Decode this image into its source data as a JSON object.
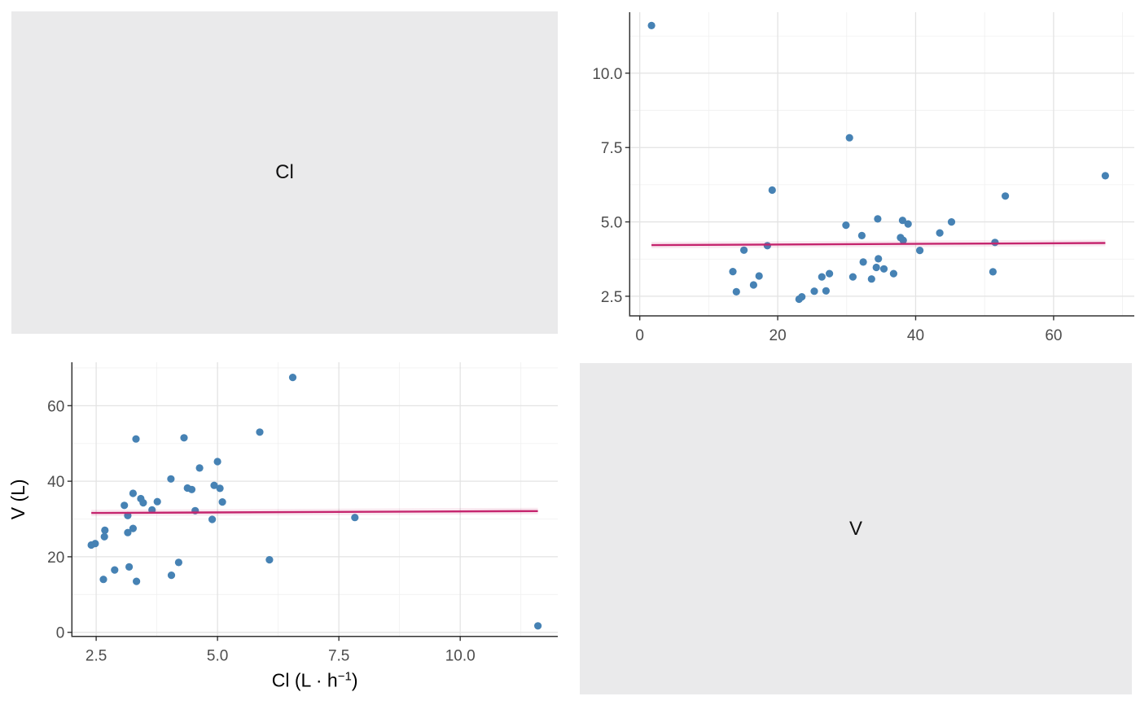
{
  "panels": {
    "top_left_label": "Cl",
    "bottom_right_label": "V"
  },
  "colors": {
    "point": "#4682B4",
    "trend": "#C5256E",
    "panel_bg": "#EAEAEB",
    "grid_major": "#E3E3E3",
    "grid_minor": "#F0F0F0",
    "axis_line": "#333333",
    "tick_label": "#4D4D4D",
    "background": "#FFFFFF"
  },
  "chart_data": {
    "type": "scatter",
    "matrix_variables": [
      "Cl",
      "V"
    ],
    "points_cl_v": [
      [
        11.6,
        1.7
      ],
      [
        2.65,
        14.0
      ],
      [
        3.33,
        13.5
      ],
      [
        4.05,
        15.1
      ],
      [
        2.88,
        16.5
      ],
      [
        3.18,
        17.3
      ],
      [
        4.2,
        18.5
      ],
      [
        6.07,
        19.2
      ],
      [
        2.4,
        23.1
      ],
      [
        2.48,
        23.5
      ],
      [
        2.67,
        25.3
      ],
      [
        3.15,
        26.4
      ],
      [
        2.68,
        27.0
      ],
      [
        3.26,
        27.5
      ],
      [
        4.89,
        29.9
      ],
      [
        7.83,
        30.4
      ],
      [
        3.15,
        30.9
      ],
      [
        4.54,
        32.2
      ],
      [
        3.65,
        32.4
      ],
      [
        3.08,
        33.6
      ],
      [
        5.1,
        34.5
      ],
      [
        3.47,
        34.3
      ],
      [
        3.76,
        34.6
      ],
      [
        3.42,
        35.4
      ],
      [
        3.26,
        36.8
      ],
      [
        4.47,
        37.8
      ],
      [
        5.05,
        38.1
      ],
      [
        4.38,
        38.2
      ],
      [
        4.93,
        38.9
      ],
      [
        4.04,
        40.6
      ],
      [
        4.63,
        43.5
      ],
      [
        5.0,
        45.2
      ],
      [
        3.32,
        51.2
      ],
      [
        4.31,
        51.5
      ],
      [
        5.87,
        53.0
      ],
      [
        6.55,
        67.5
      ]
    ],
    "top_right": {
      "type": "scatter",
      "x_var": "V",
      "y_var": "Cl",
      "xlim": [
        -1.46,
        71.7
      ],
      "ylim": [
        1.84,
        12.05
      ],
      "x_ticks": [
        0,
        20,
        40,
        60
      ],
      "x_tick_labels": [
        "0",
        "20",
        "40",
        "60"
      ],
      "x_minor": [
        10,
        30,
        50,
        70
      ],
      "y_ticks": [
        2.5,
        5.0,
        7.5,
        10.0
      ],
      "y_tick_labels": [
        "2.5",
        "5.0",
        "7.5",
        "10.0"
      ],
      "y_minor": [
        3.75,
        6.25,
        8.75,
        11.25
      ],
      "x_title": null,
      "y_title": null,
      "trend": {
        "x1": 1.7,
        "y1": 4.22,
        "x2": 67.5,
        "y2": 4.29
      }
    },
    "bottom_left": {
      "type": "scatter",
      "x_var": "Cl",
      "y_var": "V",
      "xlim": [
        2.0,
        12.01
      ],
      "ylim": [
        -1.08,
        71.5
      ],
      "x_ticks": [
        2.5,
        5.0,
        7.5,
        10.0
      ],
      "x_tick_labels": [
        "2.5",
        "5.0",
        "7.5",
        "10.0"
      ],
      "x_minor": [
        3.75,
        6.25,
        8.75,
        11.25
      ],
      "y_ticks": [
        0,
        20,
        40,
        60
      ],
      "y_tick_labels": [
        "0",
        "20",
        "40",
        "60"
      ],
      "y_minor": [
        10,
        30,
        50,
        70
      ],
      "x_title": {
        "text": "Cl (L · h⁻¹)",
        "main": "Cl (L · h",
        "sup": "−1",
        "tail": ")"
      },
      "y_title": "V (L)",
      "trend": {
        "x1": 2.4,
        "y1": 31.6,
        "x2": 11.6,
        "y2": 32.1
      }
    }
  }
}
